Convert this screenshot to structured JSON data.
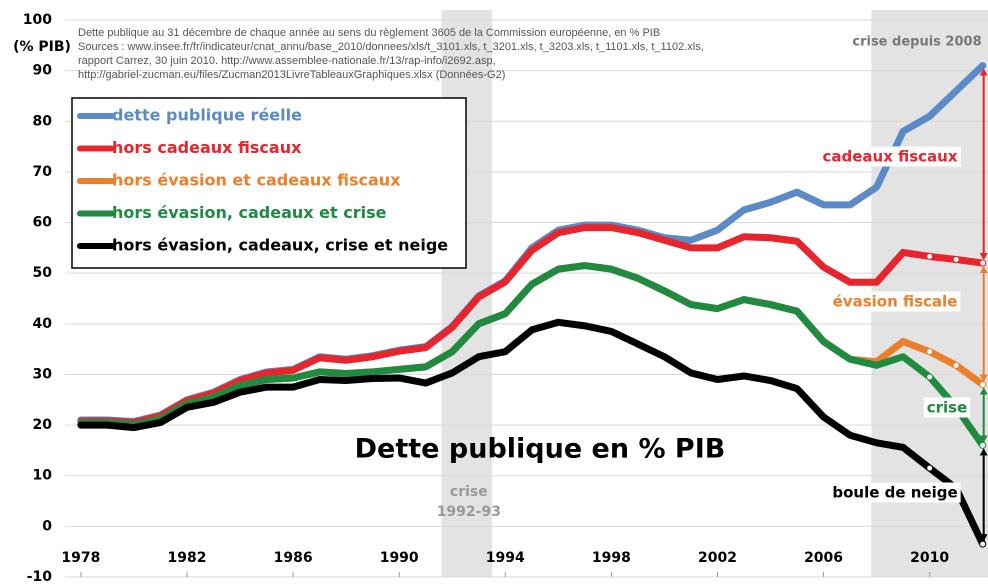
{
  "chart_data": {
    "type": "line",
    "title": "Dette publique en % PIB",
    "y_label": "(% PIB)",
    "source_lines": [
      "Dette publique au 31 décembre de chaque année au sens du règlement 3605 de la Commission européenne, en % PIB",
      "Sources : www.insee.fr/fr/indicateur/cnat_annu/base_2010/donnees/xls/t_3101.xls, t_3201.xls, t_3203.xls, t_1101.xls, t_1102.xls,",
      "rapport Carrez, 30 juin 2010. http://www.assemblee-nationale.fr/13/rap-info/i2692.asp,",
      "http://gabriel-zucman.eu/files/Zucman2013LivreTableauxGraphiques.xlsx (Données-G2)"
    ],
    "x": [
      1978,
      1979,
      1980,
      1981,
      1982,
      1983,
      1984,
      1985,
      1986,
      1987,
      1988,
      1989,
      1990,
      1991,
      1992,
      1993,
      1994,
      1995,
      1996,
      1997,
      1998,
      1999,
      2000,
      2001,
      2002,
      2003,
      2004,
      2005,
      2006,
      2007,
      2008,
      2009,
      2010,
      2011,
      2012
    ],
    "series": [
      {
        "name": "dette publique réelle",
        "color": "#5b8ac6",
        "values": [
          21,
          21,
          20.7,
          22,
          25,
          26.5,
          29,
          30.5,
          31,
          33.5,
          33,
          33.7,
          34.8,
          35.5,
          39.5,
          45.5,
          48.5,
          55,
          58.5,
          59.5,
          59.5,
          58.5,
          57,
          56.5,
          58.5,
          62.5,
          64,
          66,
          63.5,
          63.5,
          67,
          78,
          81,
          86,
          91
        ]
      },
      {
        "name": "hors cadeaux fiscaux",
        "color": "#e8242c",
        "values": [
          20.8,
          20.8,
          20.5,
          21.8,
          24.8,
          26.3,
          28.8,
          30.3,
          30.8,
          33.3,
          32.8,
          33.5,
          34.6,
          35.3,
          39.3,
          45.3,
          48.3,
          54.5,
          58,
          59,
          59,
          58,
          56.5,
          55,
          55,
          57.2,
          57,
          56.3,
          51.2,
          48.2,
          48.2,
          54.1,
          53.3,
          52.7,
          52
        ]
      },
      {
        "name": "hors évasion et cadeaux fiscaux",
        "color": "#ea7f2c",
        "values": [
          20.5,
          20.5,
          20.1,
          21.2,
          24.2,
          25.5,
          27.8,
          29,
          29.3,
          30.5,
          30.2,
          30.5,
          31,
          31.5,
          34.5,
          40,
          42,
          47.8,
          50.8,
          51.5,
          50.8,
          49,
          46.5,
          43.8,
          43,
          44.8,
          43.8,
          42.5,
          36.5,
          33,
          32.5,
          36.5,
          34.5,
          31.8,
          28
        ]
      },
      {
        "name": "hors évasion, cadeaux et crise",
        "color": "#1f8a40",
        "values": [
          20.5,
          20.5,
          20.1,
          21.2,
          24.2,
          25.5,
          27.8,
          29,
          29.3,
          30.5,
          30.2,
          30.5,
          31,
          31.5,
          34.5,
          40,
          42,
          47.8,
          50.8,
          51.5,
          50.8,
          49,
          46.5,
          43.8,
          43,
          44.8,
          43.8,
          42.5,
          36.5,
          33,
          31.8,
          33.5,
          29.5,
          23.5,
          16
        ]
      },
      {
        "name": "hors évasion, cadeaux, crise et neige",
        "color": "#000000",
        "values": [
          20,
          20,
          19.5,
          20.5,
          23.5,
          24.5,
          26.5,
          27.5,
          27.5,
          29,
          28.8,
          29.2,
          29.3,
          28.3,
          30.3,
          33.5,
          34.5,
          38.8,
          40.3,
          39.6,
          38.5,
          36,
          33.5,
          30.3,
          29,
          29.7,
          28.8,
          27.2,
          21.6,
          18,
          16.5,
          15.6,
          11.5,
          7.5,
          -3.5
        ]
      }
    ],
    "xlim": [
      1977.4,
      2012.2
    ],
    "xticks": [
      1978,
      1982,
      1986,
      1990,
      1994,
      1998,
      2002,
      2006,
      2010
    ],
    "ylim": [
      -10,
      100
    ],
    "yticks": [
      -10,
      0,
      10,
      20,
      30,
      40,
      50,
      60,
      70,
      80,
      90,
      100
    ],
    "grid": true,
    "legend": "upper left",
    "shaded_periods": [
      {
        "text": [
          "crise",
          "1992-93"
        ],
        "range": [
          1991.6,
          1993.5
        ]
      },
      {
        "text": [
          "crise depuis 2008"
        ],
        "range": [
          2007.8,
          2012.2
        ]
      }
    ],
    "annotations": [
      {
        "text": "cadeaux fiscaux",
        "color": "#e8242c"
      },
      {
        "text": "évasion fiscale",
        "color": "#ea7f2c"
      },
      {
        "text": "crise",
        "color": "#1f8a40"
      },
      {
        "text": "boule de neige",
        "color": "#000000"
      }
    ]
  }
}
